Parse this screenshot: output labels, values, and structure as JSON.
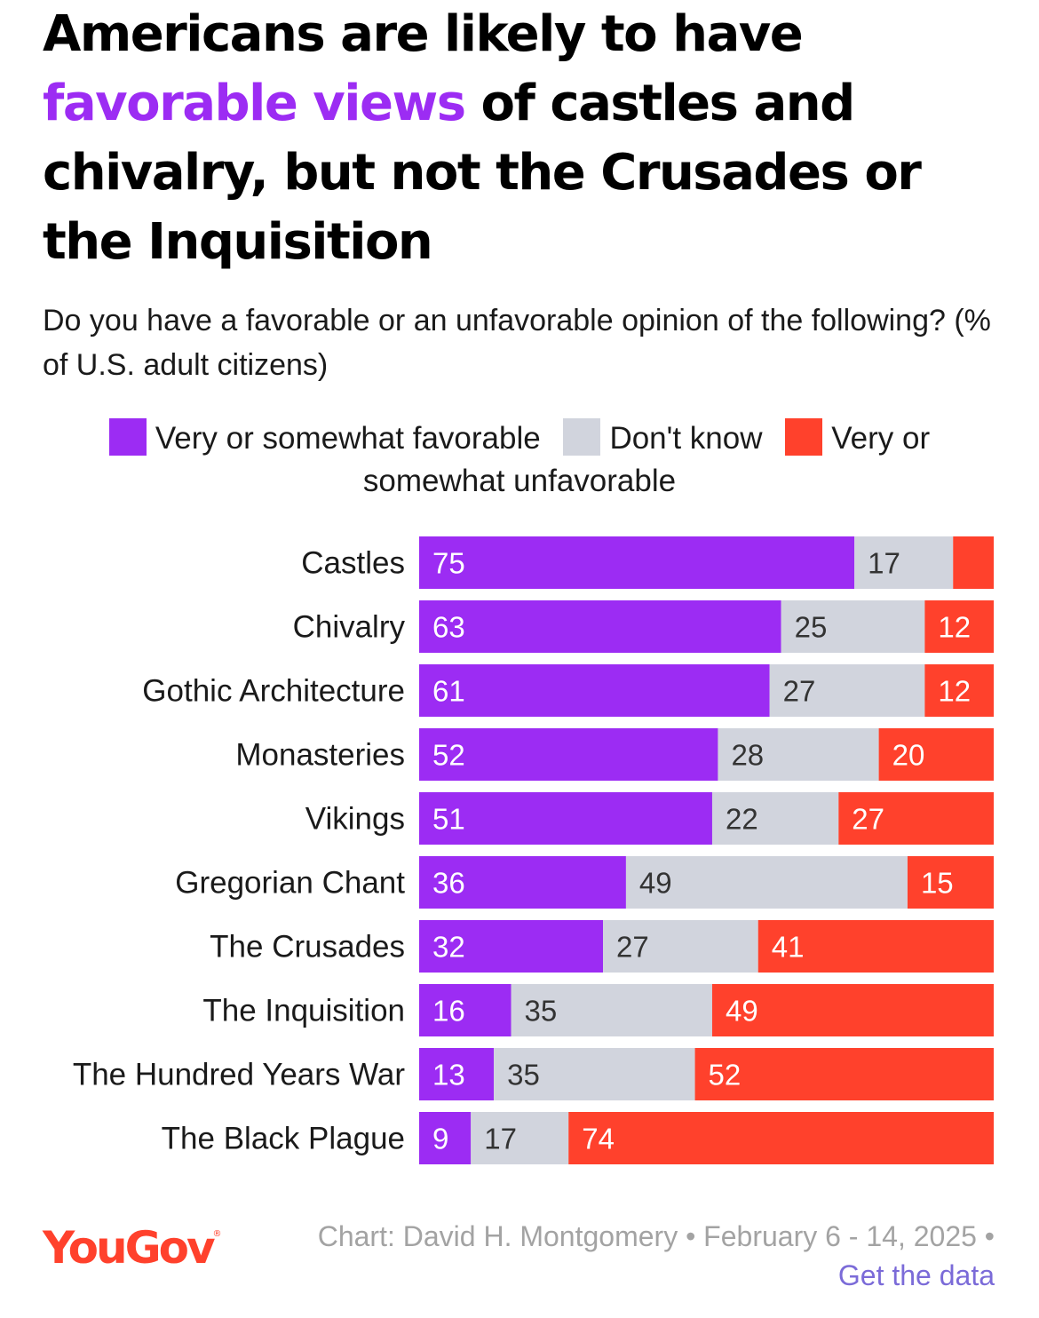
{
  "title": {
    "part1": "Americans are likely to have ",
    "highlight": "favorable views",
    "part2": " of castles and chivalry, but not the Crusades or the Inquisition"
  },
  "subtitle": "Do you have a favorable or an unfavorable opinion of the following? (% of U.S. adult citizens)",
  "colors": {
    "favorable": "#9c2cf3",
    "dont_know": "#d1d4dd",
    "unfavorable": "#ff412c",
    "logo": "#ff412c",
    "link": "#7b6bd8"
  },
  "chart_data": {
    "type": "bar",
    "orientation": "horizontal",
    "stacked": true,
    "categories": [
      "Castles",
      "Chivalry",
      "Gothic Architecture",
      "Monasteries",
      "Vikings",
      "Gregorian Chant",
      "The Crusades",
      "The Inquisition",
      "The Hundred Years War",
      "The Black Plague"
    ],
    "series": [
      {
        "name": "Very or somewhat favorable",
        "values": [
          75,
          63,
          61,
          52,
          51,
          36,
          32,
          16,
          13,
          9
        ]
      },
      {
        "name": "Don't know",
        "values": [
          17,
          25,
          27,
          28,
          22,
          49,
          27,
          35,
          35,
          17
        ]
      },
      {
        "name": "Very or somewhat unfavorable",
        "values": [
          7,
          12,
          12,
          20,
          27,
          15,
          41,
          49,
          52,
          74
        ]
      }
    ],
    "value_labels_hidden": [
      [
        false,
        false,
        false,
        false,
        false,
        false,
        false,
        false,
        false,
        false
      ],
      [
        false,
        false,
        false,
        false,
        false,
        false,
        false,
        false,
        false,
        false
      ],
      [
        true,
        false,
        false,
        false,
        false,
        false,
        false,
        false,
        false,
        false
      ]
    ],
    "xlim": [
      0,
      100
    ],
    "legend_position": "top-center",
    "grid": false
  },
  "footer": {
    "logo": "YouGov",
    "logo_mark": "®",
    "credit": "Chart: David H. Montgomery • February 6 - 14, 2025 •",
    "link": "Get the data"
  }
}
